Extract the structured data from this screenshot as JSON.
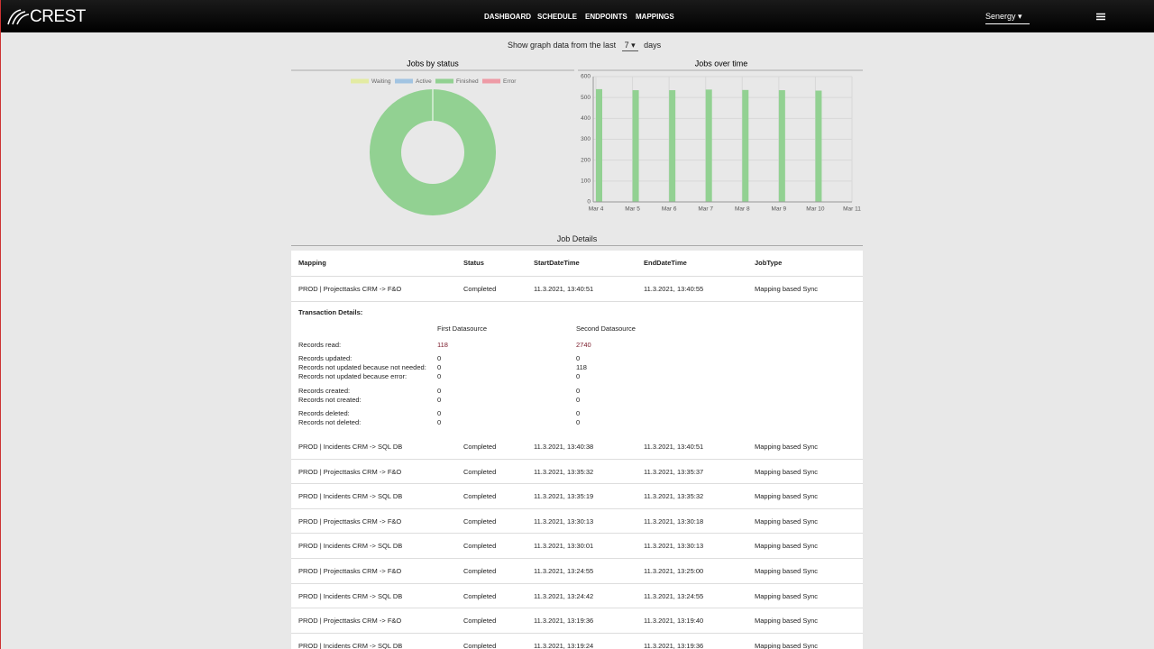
{
  "nav": {
    "logo": "CREST",
    "links": [
      "DASHBOARD",
      "SCHEDULE",
      "ENDPOINTS",
      "MAPPINGS"
    ],
    "user": "Senergy"
  },
  "filter": {
    "prefix": "Show graph data from the last",
    "value": "7",
    "suffix": "days"
  },
  "chart_data": [
    {
      "type": "pie",
      "title": "Jobs by status",
      "donut": true,
      "categories": [
        "Waiting",
        "Active",
        "Finished",
        "Error"
      ],
      "values": [
        0,
        0,
        3752,
        0
      ],
      "colors": [
        "#e3eba3",
        "#a2c4e2",
        "#92d192",
        "#ee9ba6"
      ]
    },
    {
      "type": "bar",
      "title": "Jobs over time",
      "categories": [
        "Mar 4",
        "Mar 5",
        "Mar 6",
        "Mar 7",
        "Mar 8",
        "Mar 9",
        "Mar 10",
        "Mar 11"
      ],
      "values": [
        540,
        535,
        535,
        538,
        536,
        535,
        533,
        null
      ],
      "color": "#92d192",
      "ylim": [
        0,
        600
      ],
      "yticks": [
        0,
        100,
        200,
        300,
        400,
        500,
        600
      ],
      "grid": true
    }
  ],
  "table": {
    "title": "Job Details",
    "columns": [
      "Mapping",
      "Status",
      "StartDateTime",
      "EndDateTime",
      "JobType"
    ],
    "rows": [
      [
        "PROD | Projecttasks CRM -> F&O",
        "Completed",
        "11.3.2021, 13:40:51",
        "11.3.2021, 13:40:55",
        "Mapping based Sync"
      ],
      [
        "PROD | Incidents CRM -> SQL DB",
        "Completed",
        "11.3.2021, 13:40:38",
        "11.3.2021, 13:40:51",
        "Mapping based Sync"
      ],
      [
        "PROD | Projecttasks CRM -> F&O",
        "Completed",
        "11.3.2021, 13:35:32",
        "11.3.2021, 13:35:37",
        "Mapping based Sync"
      ],
      [
        "PROD | Incidents CRM -> SQL DB",
        "Completed",
        "11.3.2021, 13:35:19",
        "11.3.2021, 13:35:32",
        "Mapping based Sync"
      ],
      [
        "PROD | Projecttasks CRM -> F&O",
        "Completed",
        "11.3.2021, 13:30:13",
        "11.3.2021, 13:30:18",
        "Mapping based Sync"
      ],
      [
        "PROD | Incidents CRM -> SQL DB",
        "Completed",
        "11.3.2021, 13:30:01",
        "11.3.2021, 13:30:13",
        "Mapping based Sync"
      ],
      [
        "PROD | Projecttasks CRM -> F&O",
        "Completed",
        "11.3.2021, 13:24:55",
        "11.3.2021, 13:25:00",
        "Mapping based Sync"
      ],
      [
        "PROD | Incidents CRM -> SQL DB",
        "Completed",
        "11.3.2021, 13:24:42",
        "11.3.2021, 13:24:55",
        "Mapping based Sync"
      ],
      [
        "PROD | Projecttasks CRM -> F&O",
        "Completed",
        "11.3.2021, 13:19:36",
        "11.3.2021, 13:19:40",
        "Mapping based Sync"
      ],
      [
        "PROD | Incidents CRM -> SQL DB",
        "Completed",
        "11.3.2021, 13:19:24",
        "11.3.2021, 13:19:36",
        "Mapping based Sync"
      ]
    ],
    "details": {
      "title": "Transaction Details:",
      "sources": [
        "First Datasource",
        "Second Datasource"
      ],
      "groups": [
        [
          {
            "label": "Records read:",
            "values": [
              118,
              2740
            ]
          }
        ],
        [
          {
            "label": "Records updated:",
            "values": [
              0,
              0
            ]
          },
          {
            "label": "Records not updated because not needed:",
            "values": [
              0,
              118
            ]
          },
          {
            "label": "Records not updated because error:",
            "values": [
              0,
              0
            ]
          }
        ],
        [
          {
            "label": "Records created:",
            "values": [
              0,
              0
            ]
          },
          {
            "label": "Records not created:",
            "values": [
              0,
              0
            ]
          }
        ],
        [
          {
            "label": "Records deleted:",
            "values": [
              0,
              0
            ]
          },
          {
            "label": "Records not deleted:",
            "values": [
              0,
              0
            ]
          }
        ]
      ]
    }
  }
}
